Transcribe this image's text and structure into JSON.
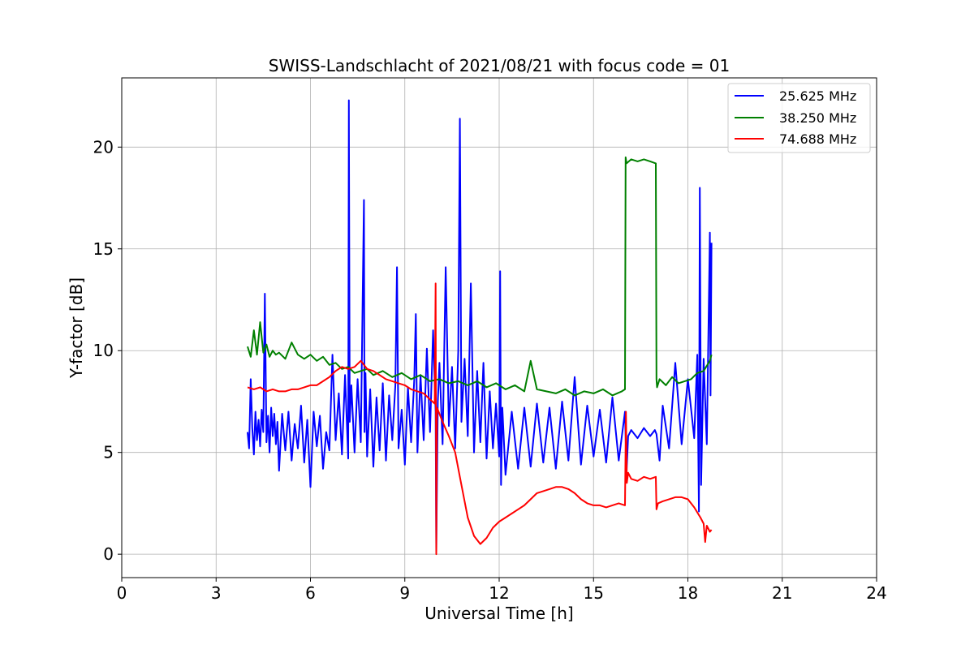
{
  "chart_data": {
    "type": "line",
    "title": "SWISS-Landschlacht of 2021/08/21 with focus code = 01",
    "xlabel": "Universal Time [h]",
    "ylabel": "Y-factor [dB]",
    "xlim": [
      0,
      24
    ],
    "ylim": [
      -1.15,
      23.4
    ],
    "xticks": [
      0,
      3,
      6,
      9,
      12,
      15,
      18,
      21,
      24
    ],
    "yticks": [
      0,
      5,
      10,
      15,
      20
    ],
    "grid": true,
    "legend_position": "top-right",
    "series": [
      {
        "name": "25.625 MHz",
        "color": "#0000ff",
        "x": [
          4.0,
          4.05,
          4.1,
          4.15,
          4.2,
          4.25,
          4.3,
          4.35,
          4.4,
          4.45,
          4.5,
          4.55,
          4.6,
          4.65,
          4.7,
          4.75,
          4.8,
          4.85,
          4.9,
          4.95,
          5.0,
          5.1,
          5.2,
          5.3,
          5.4,
          5.5,
          5.6,
          5.7,
          5.8,
          5.9,
          6.0,
          6.1,
          6.2,
          6.3,
          6.4,
          6.5,
          6.6,
          6.7,
          6.8,
          6.9,
          7.0,
          7.1,
          7.2,
          7.22,
          7.25,
          7.3,
          7.4,
          7.5,
          7.6,
          7.7,
          7.72,
          7.75,
          7.8,
          7.9,
          8.0,
          8.1,
          8.2,
          8.3,
          8.4,
          8.5,
          8.6,
          8.7,
          8.75,
          8.8,
          8.9,
          9.0,
          9.1,
          9.2,
          9.3,
          9.35,
          9.4,
          9.5,
          9.6,
          9.7,
          9.8,
          9.9,
          9.98,
          10.0,
          10.05,
          10.1,
          10.2,
          10.3,
          10.4,
          10.5,
          10.6,
          10.7,
          10.75,
          10.8,
          10.9,
          11.0,
          11.1,
          11.2,
          11.3,
          11.4,
          11.5,
          11.6,
          11.7,
          11.8,
          11.9,
          12.0,
          12.03,
          12.06,
          12.1,
          12.2,
          12.4,
          12.6,
          12.8,
          13.0,
          13.2,
          13.4,
          13.6,
          13.8,
          14.0,
          14.2,
          14.4,
          14.6,
          14.8,
          15.0,
          15.2,
          15.4,
          15.6,
          15.8,
          16.0,
          16.05,
          16.1,
          16.2,
          16.4,
          16.6,
          16.8,
          16.95,
          17.0,
          17.1,
          17.2,
          17.4,
          17.6,
          17.8,
          18.0,
          18.2,
          18.3,
          18.35,
          18.38,
          18.42,
          18.5,
          18.6,
          18.7,
          18.72,
          18.75
        ],
        "y": [
          6.0,
          5.2,
          8.6,
          6.2,
          4.9,
          7.0,
          5.6,
          6.6,
          5.3,
          7.1,
          6.0,
          12.8,
          5.5,
          6.8,
          5.0,
          7.2,
          5.8,
          6.9,
          5.4,
          6.5,
          4.1,
          6.9,
          5.1,
          7.0,
          4.6,
          6.4,
          5.2,
          7.3,
          4.5,
          6.6,
          3.3,
          7.0,
          5.3,
          6.8,
          4.2,
          6.0,
          5.1,
          9.8,
          5.6,
          7.9,
          4.9,
          8.8,
          4.7,
          22.3,
          6.5,
          8.3,
          5.0,
          8.6,
          5.5,
          17.4,
          6.0,
          8.9,
          4.8,
          8.1,
          4.3,
          7.7,
          5.1,
          8.4,
          4.6,
          7.8,
          5.6,
          8.3,
          14.1,
          5.2,
          7.1,
          4.4,
          8.2,
          5.5,
          8.6,
          11.8,
          5.0,
          8.8,
          5.6,
          10.1,
          6.0,
          11.0,
          7.0,
          0.1,
          7.5,
          9.4,
          5.4,
          14.1,
          6.3,
          9.2,
          5.2,
          10.0,
          21.4,
          6.5,
          9.6,
          5.8,
          13.3,
          5.0,
          9.0,
          5.5,
          9.4,
          4.7,
          8.0,
          5.2,
          7.4,
          4.8,
          13.9,
          3.4,
          7.2,
          3.9,
          7.0,
          4.2,
          7.2,
          4.3,
          7.4,
          4.5,
          7.2,
          4.2,
          7.5,
          4.6,
          8.7,
          4.4,
          7.3,
          4.8,
          7.1,
          4.5,
          7.7,
          4.6,
          7.0,
          4.0,
          5.8,
          6.1,
          5.7,
          6.2,
          5.8,
          6.1,
          5.9,
          4.6,
          7.3,
          5.2,
          9.4,
          5.4,
          8.6,
          5.7,
          9.8,
          2.1,
          18.0,
          3.4,
          9.6,
          5.4,
          15.8,
          7.8,
          15.3
        ]
      },
      {
        "name": "38.250 MHz",
        "color": "#008000",
        "x": [
          4.0,
          4.1,
          4.2,
          4.3,
          4.4,
          4.5,
          4.6,
          4.7,
          4.8,
          4.9,
          5.0,
          5.2,
          5.4,
          5.6,
          5.8,
          6.0,
          6.2,
          6.4,
          6.6,
          6.8,
          7.0,
          7.2,
          7.4,
          7.6,
          7.8,
          8.0,
          8.3,
          8.6,
          8.9,
          9.2,
          9.5,
          9.8,
          10.1,
          10.4,
          10.7,
          11.0,
          11.3,
          11.6,
          11.9,
          12.2,
          12.5,
          12.8,
          13.0,
          13.2,
          13.5,
          13.8,
          14.1,
          14.4,
          14.7,
          15.0,
          15.3,
          15.6,
          15.9,
          16.0,
          16.02,
          16.05,
          16.2,
          16.4,
          16.6,
          16.8,
          16.98,
          17.0,
          17.02,
          17.1,
          17.3,
          17.5,
          17.7,
          17.9,
          18.1,
          18.3,
          18.5,
          18.7,
          18.75
        ],
        "y": [
          10.2,
          9.7,
          11.0,
          9.8,
          11.4,
          9.9,
          10.3,
          9.7,
          10.0,
          9.8,
          9.9,
          9.6,
          10.4,
          9.8,
          9.6,
          9.8,
          9.5,
          9.7,
          9.3,
          9.4,
          9.1,
          9.2,
          8.9,
          9.0,
          9.1,
          8.8,
          9.0,
          8.7,
          8.9,
          8.6,
          8.8,
          8.5,
          8.6,
          8.4,
          8.5,
          8.3,
          8.5,
          8.2,
          8.4,
          8.1,
          8.3,
          8.0,
          9.5,
          8.1,
          8.0,
          7.9,
          8.1,
          7.8,
          8.0,
          7.9,
          8.1,
          7.8,
          8.0,
          8.1,
          19.5,
          19.2,
          19.4,
          19.3,
          19.4,
          19.3,
          19.2,
          8.6,
          8.2,
          8.6,
          8.3,
          8.7,
          8.4,
          8.5,
          8.6,
          8.9,
          9.0,
          9.5,
          9.8
        ]
      },
      {
        "name": "74.688 MHz",
        "color": "#ff0000",
        "x": [
          4.0,
          4.2,
          4.4,
          4.6,
          4.8,
          5.0,
          5.2,
          5.4,
          5.6,
          5.8,
          6.0,
          6.2,
          6.4,
          6.6,
          6.8,
          7.0,
          7.2,
          7.4,
          7.6,
          7.8,
          8.0,
          8.2,
          8.4,
          8.6,
          8.8,
          9.0,
          9.2,
          9.4,
          9.6,
          9.8,
          9.95,
          9.98,
          10.0,
          10.02,
          10.05,
          10.2,
          10.4,
          10.6,
          10.8,
          11.0,
          11.2,
          11.4,
          11.6,
          11.8,
          12.0,
          12.2,
          12.4,
          12.6,
          12.8,
          13.0,
          13.2,
          13.4,
          13.6,
          13.8,
          14.0,
          14.2,
          14.4,
          14.6,
          14.8,
          15.0,
          15.2,
          15.4,
          15.6,
          15.8,
          16.0,
          16.03,
          16.06,
          16.1,
          16.2,
          16.4,
          16.6,
          16.8,
          16.98,
          17.0,
          17.05,
          17.2,
          17.4,
          17.6,
          17.8,
          18.0,
          18.2,
          18.4,
          18.5,
          18.55,
          18.6,
          18.7,
          18.75
        ],
        "y": [
          8.2,
          8.1,
          8.2,
          8.0,
          8.1,
          8.0,
          8.0,
          8.1,
          8.1,
          8.2,
          8.3,
          8.3,
          8.5,
          8.7,
          9.0,
          9.2,
          9.1,
          9.2,
          9.5,
          9.1,
          9.0,
          8.8,
          8.6,
          8.5,
          8.4,
          8.3,
          8.1,
          8.0,
          7.9,
          7.6,
          7.4,
          13.3,
          0.0,
          7.2,
          7.1,
          6.5,
          5.8,
          5.0,
          3.4,
          1.8,
          0.9,
          0.5,
          0.8,
          1.3,
          1.6,
          1.8,
          2.0,
          2.2,
          2.4,
          2.7,
          3.0,
          3.1,
          3.2,
          3.3,
          3.3,
          3.2,
          3.0,
          2.7,
          2.5,
          2.4,
          2.4,
          2.3,
          2.4,
          2.5,
          2.4,
          7.0,
          3.5,
          4.0,
          3.7,
          3.6,
          3.8,
          3.7,
          3.8,
          2.2,
          2.5,
          2.6,
          2.7,
          2.8,
          2.8,
          2.7,
          2.3,
          1.8,
          1.5,
          0.6,
          1.4,
          1.1,
          1.2
        ]
      }
    ]
  }
}
